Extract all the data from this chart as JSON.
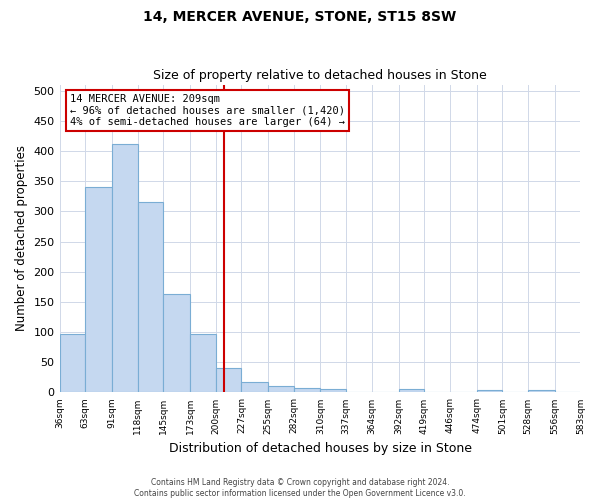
{
  "title1": "14, MERCER AVENUE, STONE, ST15 8SW",
  "title2": "Size of property relative to detached houses in Stone",
  "xlabel": "Distribution of detached houses by size in Stone",
  "ylabel": "Number of detached properties",
  "bar_color": "#c5d8f0",
  "bar_edge_color": "#7aadd4",
  "vline_color": "#cc0000",
  "vline_x": 209,
  "annotation_line1": "14 MERCER AVENUE: 209sqm",
  "annotation_line2": "← 96% of detached houses are smaller (1,420)",
  "annotation_line3": "4% of semi-detached houses are larger (64) →",
  "annotation_box_color": "#ffffff",
  "annotation_box_edge": "#cc0000",
  "bin_edges": [
    36,
    63,
    91,
    118,
    145,
    173,
    200,
    227,
    255,
    282,
    310,
    337,
    364,
    392,
    419,
    446,
    474,
    501,
    528,
    556,
    583
  ],
  "bar_heights": [
    97,
    340,
    411,
    315,
    163,
    96,
    41,
    17,
    10,
    7,
    5,
    0,
    0,
    5,
    0,
    0,
    4,
    0,
    4,
    0
  ],
  "ylim": [
    0,
    510
  ],
  "yticks": [
    0,
    50,
    100,
    150,
    200,
    250,
    300,
    350,
    400,
    450,
    500
  ],
  "footnote1": "Contains HM Land Registry data © Crown copyright and database right 2024.",
  "footnote2": "Contains public sector information licensed under the Open Government Licence v3.0.",
  "bg_color": "#ffffff",
  "plot_bg_color": "#ffffff",
  "grid_color": "#d0d8e8"
}
